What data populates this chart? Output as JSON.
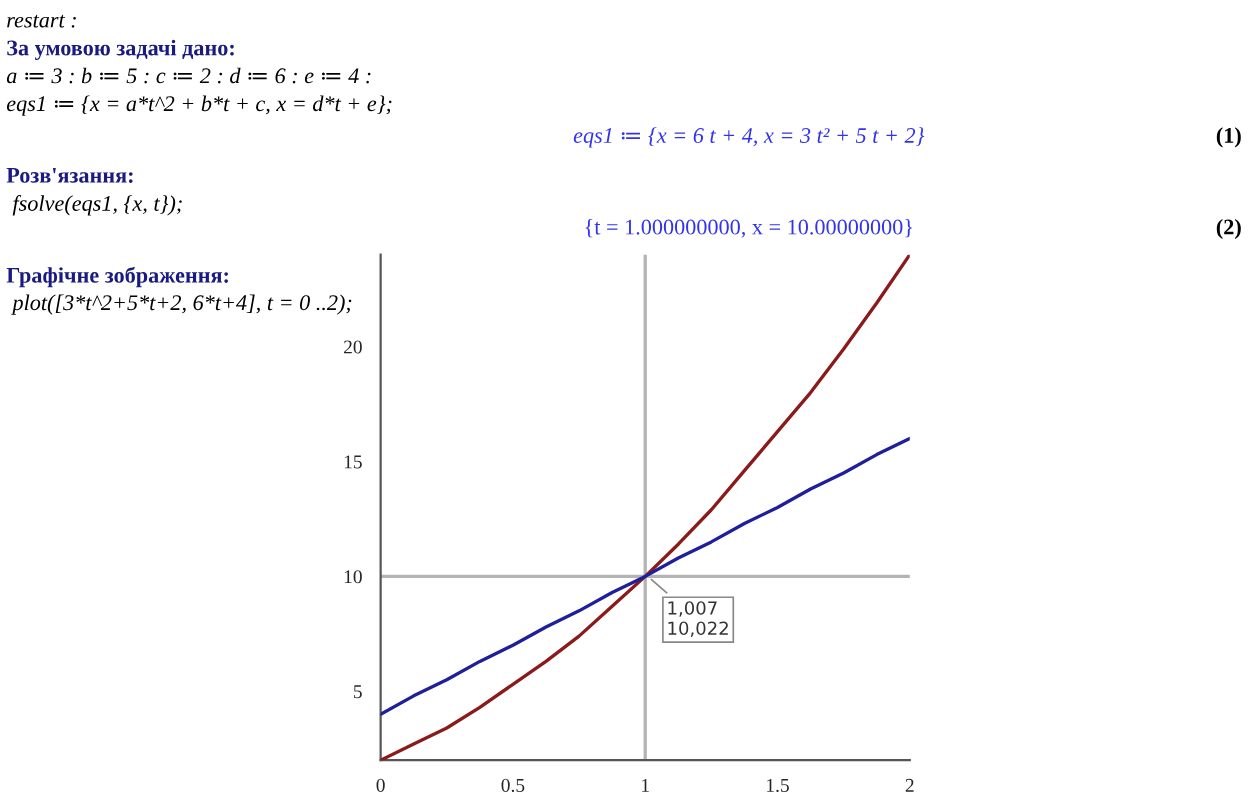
{
  "chart_data": {
    "type": "line",
    "x": [
      0,
      0.125,
      0.25,
      0.375,
      0.5,
      0.625,
      0.75,
      0.875,
      1,
      1.125,
      1.25,
      1.375,
      1.5,
      1.625,
      1.75,
      1.875,
      2
    ],
    "series": [
      {
        "color": "#8b1a1a",
        "values": [
          2,
          2.7,
          3.4,
          4.3,
          5.3,
          6.3,
          7.4,
          8.7,
          10,
          11.4,
          12.9,
          14.6,
          16.3,
          18.0,
          19.9,
          21.9,
          24
        ]
      },
      {
        "color": "#1f1f9c",
        "values": [
          4,
          4.8,
          5.5,
          6.3,
          7,
          7.8,
          8.5,
          9.3,
          10,
          10.8,
          11.5,
          12.3,
          13,
          13.8,
          14.5,
          15.3,
          16
        ]
      }
    ],
    "xlim": [
      0,
      2
    ],
    "xticks": [
      0,
      0.5,
      1,
      1.5,
      2
    ],
    "ylim": [
      2,
      24
    ],
    "yticks": [
      5,
      10,
      15,
      20
    ],
    "ref_lines": [
      {
        "axis": "x",
        "value": 1,
        "color": "#b4b4b4"
      },
      {
        "axis": "y",
        "value": 10,
        "color": "#b4b4b4"
      }
    ],
    "grid": false,
    "legend": false,
    "marker": "none",
    "line_style": "solid",
    "annotations": [
      "restart :",
      "За умовою задачі дано:",
      "a ≔ 3 : b ≔ 5 : c ≔ 2 : d ≔ 6 : e ≔ 4 :",
      "eqs1 ≔ {x = a*t^2 + b*t + c, x = d*t + e};",
      "eqs1 ≔ {x = 6 t + 4, x = 3 t² + 5 t + 2}",
      "(1)",
      "Розв'язання:",
      "fsolve(eqs1, {x, t});",
      "{t = 1.000000000, x = 10.00000000}",
      "(2)",
      "Графічне зображення:",
      "plot([3*t^2+5*t+2, 6*t+4], t = 0 ..2);",
      {
        "text": "1,007\n10,022",
        "x": 1.007,
        "y": 10.022
      }
    ]
  }
}
